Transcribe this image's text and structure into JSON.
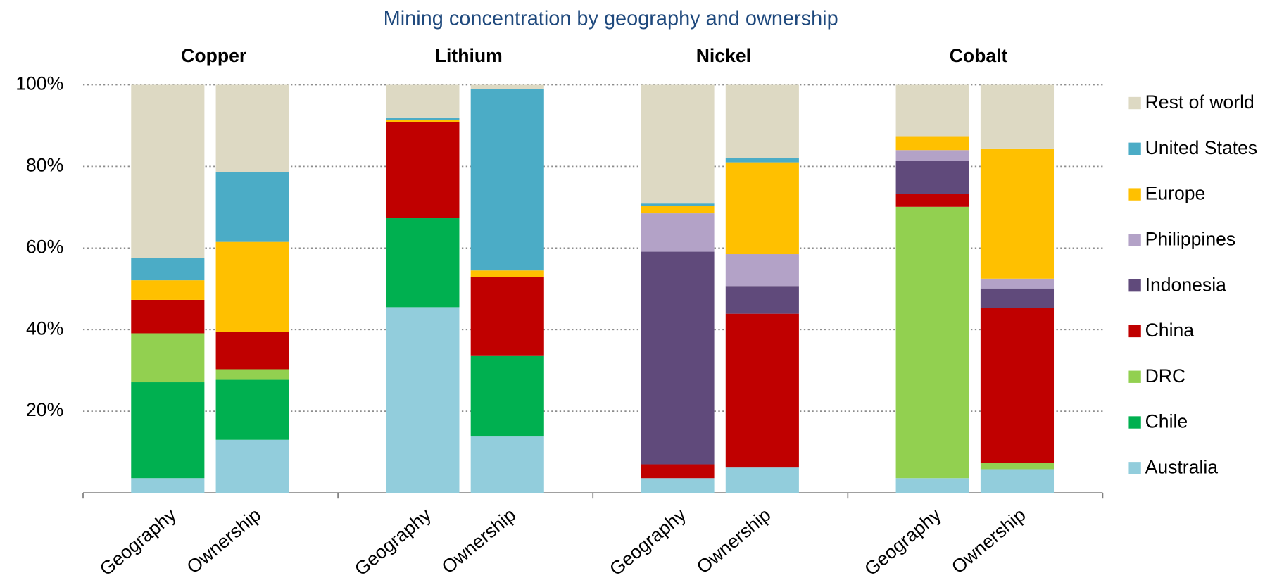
{
  "chart_data": {
    "type": "stacked_bar",
    "title": "Mining concentration by geography and ownership",
    "groups": [
      "Copper",
      "Lithium",
      "Nickel",
      "Cobalt"
    ],
    "categories": [
      "Geography",
      "Ownership",
      "Geography",
      "Ownership",
      "Geography",
      "Ownership",
      "Geography",
      "Ownership"
    ],
    "series": [
      {
        "name": "Australia",
        "color": "#92cddc",
        "values": [
          3.6,
          13.0,
          45.5,
          13.8,
          3.6,
          6.2,
          3.6,
          5.8
        ]
      },
      {
        "name": "Chile",
        "color": "#00b050",
        "values": [
          23.5,
          14.7,
          21.8,
          19.9,
          0,
          0,
          0,
          0
        ]
      },
      {
        "name": "DRC",
        "color": "#92d050",
        "values": [
          12.0,
          2.6,
          0,
          0,
          0,
          0,
          66.5,
          1.6
        ]
      },
      {
        "name": "China",
        "color": "#c00000",
        "values": [
          8.2,
          9.2,
          23.5,
          19.2,
          3.4,
          37.7,
          3.2,
          37.9
        ]
      },
      {
        "name": "Indonesia",
        "color": "#604a7b",
        "values": [
          0,
          0,
          0,
          0,
          52.1,
          6.8,
          8.1,
          4.8
        ]
      },
      {
        "name": "Philippines",
        "color": "#b3a2c7",
        "values": [
          0,
          0,
          0,
          0,
          9.4,
          7.8,
          2.6,
          2.4
        ]
      },
      {
        "name": "Europe",
        "color": "#ffc000",
        "values": [
          4.8,
          22.0,
          0.6,
          1.6,
          1.8,
          22.5,
          3.4,
          31.9
        ]
      },
      {
        "name": "United States",
        "color": "#4bacc6",
        "values": [
          5.4,
          17.1,
          0.6,
          44.5,
          0.6,
          1.0,
          0,
          0
        ]
      },
      {
        "name": "Rest of world",
        "color": "#ddd9c3",
        "values": [
          42.5,
          21.4,
          8.0,
          1.0,
          29.1,
          18.0,
          12.6,
          15.6
        ]
      }
    ],
    "ylim": [
      0,
      100
    ],
    "yticks": [
      {
        "value": 20,
        "label": "20%"
      },
      {
        "value": 40,
        "label": "40%"
      },
      {
        "value": 60,
        "label": "60%"
      },
      {
        "value": 80,
        "label": "80%"
      },
      {
        "value": 100,
        "label": "100%"
      }
    ],
    "grid": true,
    "legend": "right"
  }
}
